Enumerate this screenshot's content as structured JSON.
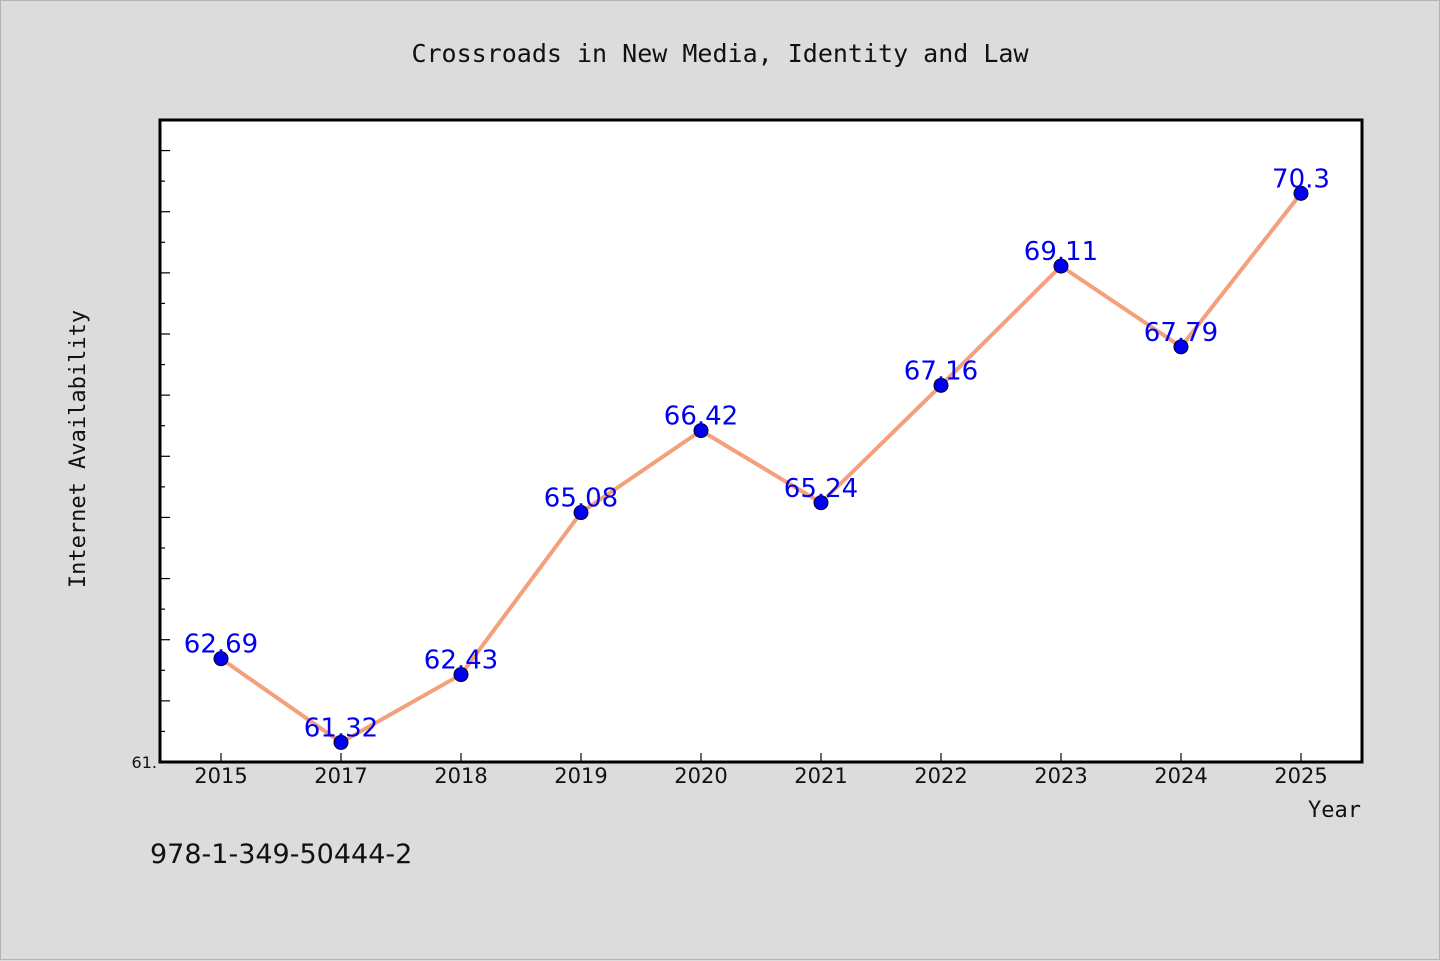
{
  "footer_text": "978-1-349-50444-2",
  "colors": {
    "background": "#dcdcdc",
    "plot_background": "#ffffff",
    "line": "#f4a07c",
    "marker": "#0000ee",
    "label": "#0000ee"
  },
  "chart_data": {
    "type": "line",
    "title": "Crossroads in New Media, Identity and Law",
    "xlabel": "Year",
    "ylabel": "Internet Availability",
    "categories": [
      "2015",
      "2017",
      "2018",
      "2019",
      "2020",
      "2021",
      "2022",
      "2023",
      "2024",
      "2025"
    ],
    "series": [
      {
        "values": [
          62.69,
          61.32,
          62.43,
          65.08,
          66.42,
          65.24,
          67.16,
          69.11,
          67.79,
          70.3
        ]
      }
    ],
    "ylim": [
      61,
      71.5
    ],
    "y_tick_labels": [
      {
        "value": 61,
        "label": "61."
      }
    ],
    "grid": false,
    "legend": false
  }
}
